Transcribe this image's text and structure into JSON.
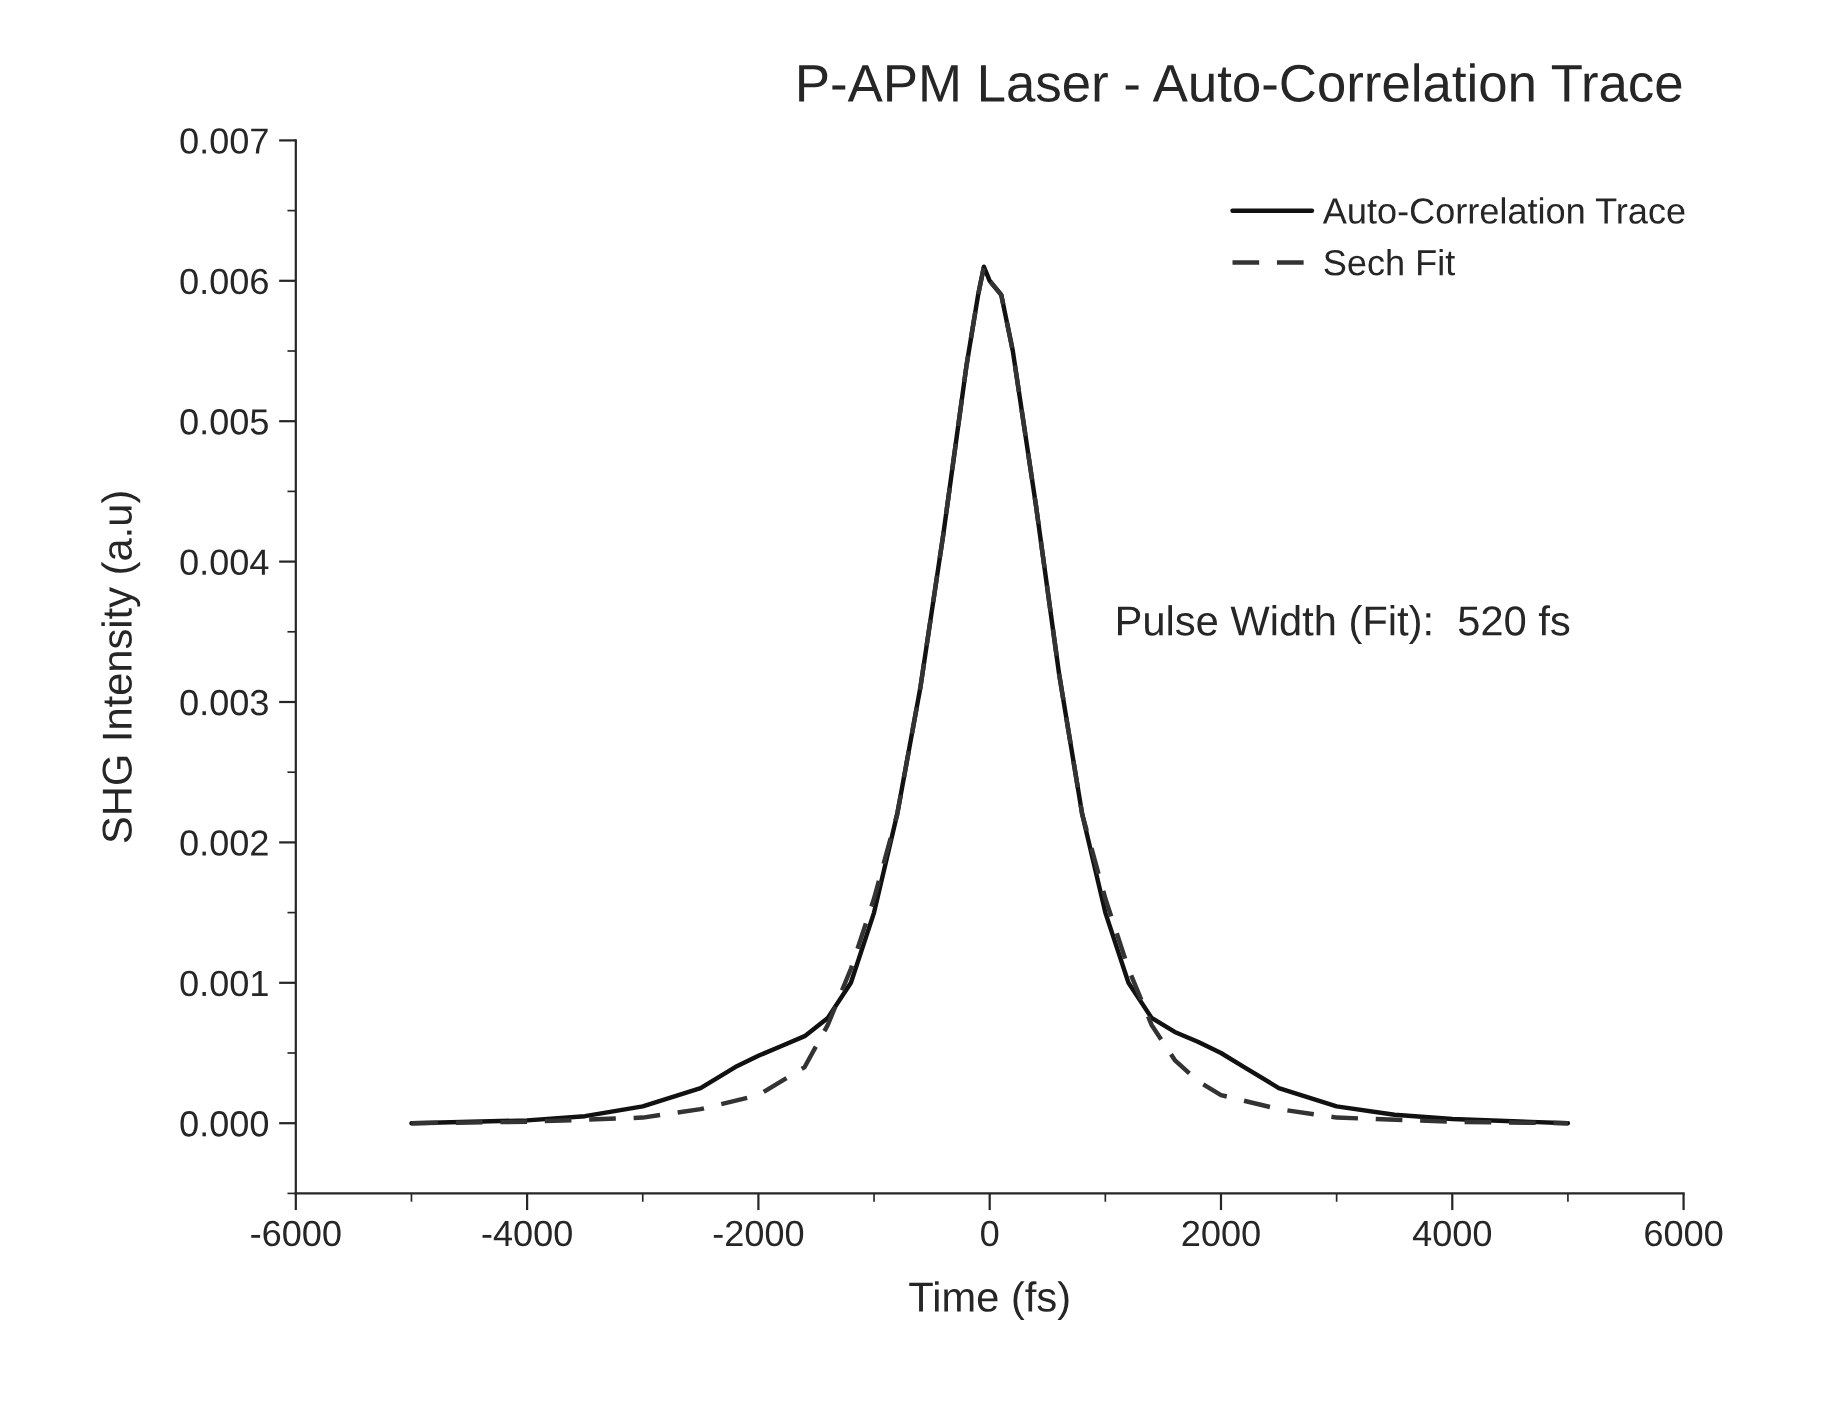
{
  "chart_data": {
    "type": "line",
    "title": "P-APM Laser - Auto-Correlation Trace",
    "xlabel": "Time (fs)",
    "ylabel": "SHG Intensity (a.u)",
    "series": [
      {
        "name": "Auto-Correlation Trace",
        "color": "#111111",
        "line_style": "solid",
        "x": [
          -5000,
          -4000,
          -3500,
          -3000,
          -2500,
          -2200,
          -2000,
          -1800,
          -1600,
          -1400,
          -1200,
          -1000,
          -800,
          -600,
          -400,
          -200,
          -100,
          -50,
          0,
          100,
          200,
          400,
          600,
          800,
          1000,
          1200,
          1400,
          1600,
          1800,
          2000,
          2200,
          2500,
          3000,
          3500,
          4000,
          5000
        ],
        "values": [
          0.0,
          2e-05,
          5e-05,
          0.00012,
          0.00025,
          0.0004,
          0.00048,
          0.00055,
          0.00062,
          0.00075,
          0.001,
          0.0015,
          0.0022,
          0.0031,
          0.0042,
          0.0054,
          0.0059,
          0.0061,
          0.006,
          0.0059,
          0.0055,
          0.0044,
          0.0032,
          0.0022,
          0.0015,
          0.001,
          0.00075,
          0.00065,
          0.00058,
          0.0005,
          0.0004,
          0.00025,
          0.00012,
          6e-05,
          3e-05,
          0.0
        ]
      },
      {
        "name": "Sech Fit",
        "color": "#333333",
        "line_style": "dashed",
        "x": [
          -5000,
          -4000,
          -3000,
          -2500,
          -2000,
          -1800,
          -1600,
          -1400,
          -1200,
          -1000,
          -800,
          -600,
          -400,
          -200,
          -100,
          -50,
          0,
          100,
          200,
          400,
          600,
          800,
          1000,
          1200,
          1400,
          1600,
          1800,
          2000,
          2500,
          3000,
          4000,
          5000
        ],
        "values": [
          0.0,
          1e-05,
          4e-05,
          0.0001,
          0.0002,
          0.0003,
          0.0004,
          0.0007,
          0.0011,
          0.0016,
          0.0022,
          0.0031,
          0.0042,
          0.0054,
          0.0059,
          0.0061,
          0.006,
          0.0059,
          0.0055,
          0.0044,
          0.0032,
          0.0022,
          0.0016,
          0.0011,
          0.0007,
          0.00045,
          0.0003,
          0.0002,
          0.0001,
          4e-05,
          1e-05,
          0.0
        ]
      }
    ],
    "xlim": [
      -6000,
      6000
    ],
    "xticks": [
      -6000,
      -4000,
      -2000,
      0,
      2000,
      4000,
      6000
    ],
    "ylim": [
      -0.0005,
      0.007
    ],
    "yticks": [
      {
        "value": 0,
        "label": "0.000"
      },
      {
        "value": 0.001,
        "label": "0.001"
      },
      {
        "value": 0.002,
        "label": "0.002"
      },
      {
        "value": 0.003,
        "label": "0.003"
      },
      {
        "value": 0.004,
        "label": "0.004"
      },
      {
        "value": 0.005,
        "label": "0.005"
      },
      {
        "value": 0.006,
        "label": "0.006"
      },
      {
        "value": 0.007,
        "label": "0.007"
      }
    ],
    "annotations": [
      "Pulse Width (Fit):  520 fs"
    ],
    "legend": "top right",
    "grid": false,
    "marker": "none"
  }
}
